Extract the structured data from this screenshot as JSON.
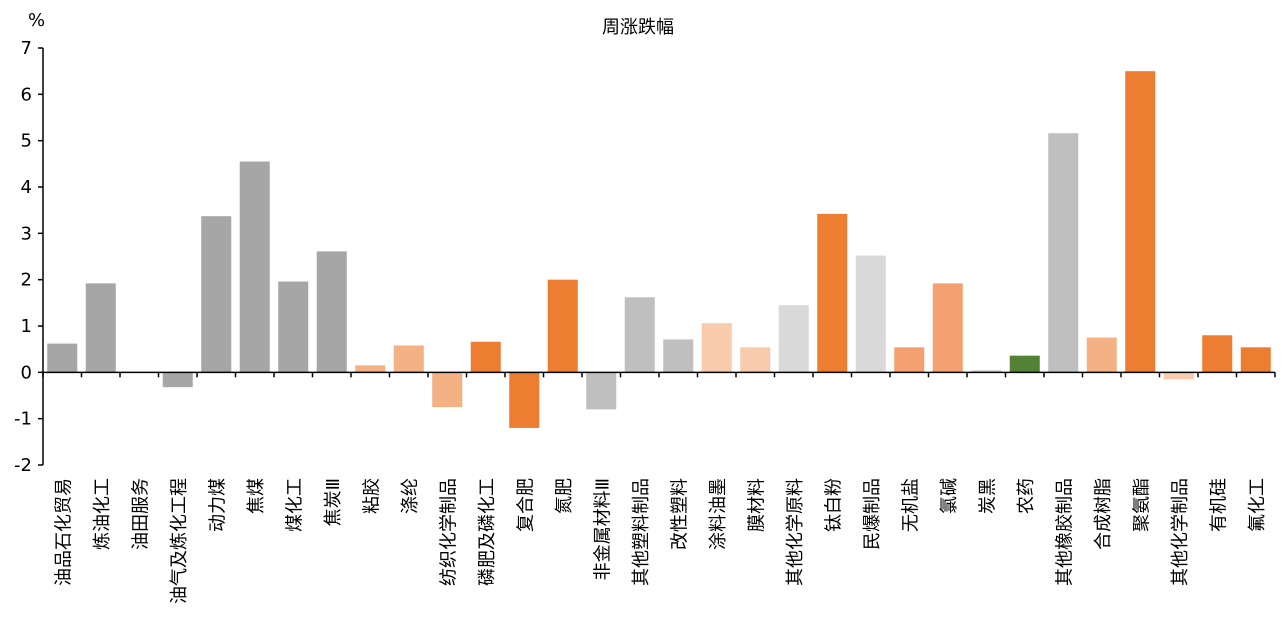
{
  "chart_data": {
    "type": "bar",
    "title": "周涨跌幅",
    "ylabel": "%",
    "xlabel": "",
    "ylim": [
      -2,
      7
    ],
    "yticks": [
      -2,
      -1,
      0,
      1,
      2,
      3,
      4,
      5,
      6,
      7
    ],
    "categories": [
      "油品石化贸易",
      "炼油化工",
      "油田服务",
      "油气及炼化工程",
      "动力煤",
      "焦煤",
      "煤化工",
      "焦炭Ⅲ",
      "粘胶",
      "涤纶",
      "纺织化学制品",
      "磷肥及磷化工",
      "复合肥",
      "氮肥",
      "非金属材料Ⅲ",
      "其他塑料制品",
      "改性塑料",
      "涂料油墨",
      "膜材料",
      "其他化学原料",
      "钛白粉",
      "民爆制品",
      "无机盐",
      "氯碱",
      "炭黑",
      "农药",
      "其他橡胶制品",
      "合成树脂",
      "聚氨酯",
      "其他化学制品",
      "有机硅",
      "氟化工"
    ],
    "values": [
      0.62,
      1.92,
      0.0,
      -0.32,
      3.37,
      4.55,
      1.96,
      2.61,
      0.15,
      0.58,
      -0.75,
      0.66,
      -1.2,
      2.0,
      -0.8,
      1.62,
      0.71,
      1.06,
      0.54,
      1.45,
      3.42,
      2.52,
      0.54,
      1.92,
      0.05,
      0.36,
      5.16,
      0.75,
      6.5,
      -0.15,
      0.8,
      0.54
    ],
    "colors": [
      "#a6a6a6",
      "#a6a6a6",
      "#a6a6a6",
      "#a6a6a6",
      "#a6a6a6",
      "#a6a6a6",
      "#a6a6a6",
      "#a6a6a6",
      "#f4b183",
      "#f4b183",
      "#f4b183",
      "#ed7d31",
      "#ed7d31",
      "#ed7d31",
      "#bfbfbf",
      "#bfbfbf",
      "#bfbfbf",
      "#f8cbad",
      "#f8cbad",
      "#d9d9d9",
      "#ed7d31",
      "#d9d9d9",
      "#f4a070",
      "#f4a070",
      "#d9d9d9",
      "#548235",
      "#bfbfbf",
      "#f4b183",
      "#ed7d31",
      "#f8cbad",
      "#ed7d31",
      "#ed7d31"
    ]
  }
}
